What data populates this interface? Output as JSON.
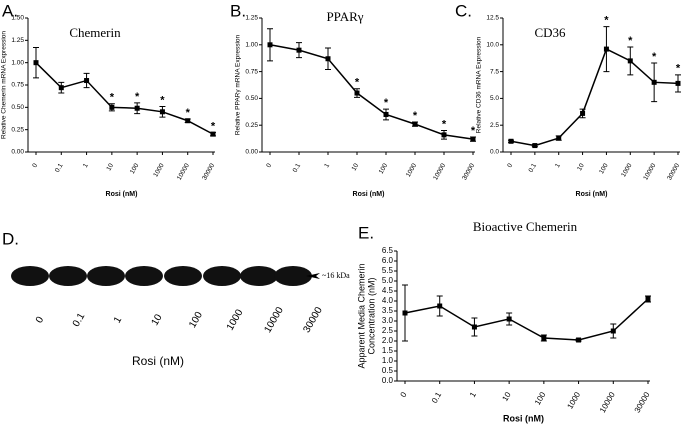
{
  "chart_data": [
    {
      "type": "line",
      "panel_label": "A.",
      "title": "Chemerin",
      "xlabel": "Rosi (nM)",
      "ylabel": [
        "Relative Chemerin mRNA Expression"
      ],
      "categories": [
        "0",
        "0.1",
        "1",
        "10",
        "100",
        "1000",
        "10000",
        "30000"
      ],
      "series": [
        {
          "color": "#000000",
          "values": [
            1.0,
            0.72,
            0.8,
            0.5,
            0.49,
            0.45,
            0.35,
            0.2
          ],
          "errors": [
            0.17,
            0.06,
            0.08,
            0.04,
            0.06,
            0.06,
            0.02,
            0.02
          ],
          "markers": [
            null,
            null,
            null,
            "*",
            "*",
            "*",
            "*",
            "*"
          ]
        }
      ],
      "ylim": [
        0,
        1.5
      ],
      "yticks": [
        {
          "value": 0,
          "label": "0.00"
        },
        {
          "value": 0.25,
          "label": "0.25"
        },
        {
          "value": 0.5,
          "label": "0.50"
        },
        {
          "value": 0.75,
          "label": "0.75"
        },
        {
          "value": 1,
          "label": "1.00"
        },
        {
          "value": 1.25,
          "label": "1.25"
        },
        {
          "value": 1.5,
          "label": "1.50"
        }
      ]
    },
    {
      "type": "line",
      "panel_label": "B.",
      "title": "PPARγ",
      "xlabel": "Rosi (nM)",
      "ylabel": [
        "Relative PPARγ mRNA Expression"
      ],
      "categories": [
        "0",
        "0.1",
        "1",
        "10",
        "100",
        "1000",
        "10000",
        "30000"
      ],
      "series": [
        {
          "color": "#000000",
          "values": [
            1.0,
            0.95,
            0.87,
            0.55,
            0.35,
            0.26,
            0.16,
            0.12
          ],
          "errors": [
            0.15,
            0.07,
            0.1,
            0.04,
            0.05,
            0.02,
            0.04,
            0.02
          ],
          "markers": [
            null,
            null,
            null,
            "*",
            "*",
            "*",
            "*",
            "*"
          ]
        }
      ],
      "ylim": [
        0,
        1.25
      ],
      "yticks": [
        {
          "value": 0,
          "label": "0.00"
        },
        {
          "value": 0.25,
          "label": "0.25"
        },
        {
          "value": 0.5,
          "label": "0.50"
        },
        {
          "value": 0.75,
          "label": "0.75"
        },
        {
          "value": 1,
          "label": "1.00"
        },
        {
          "value": 1.25,
          "label": "1.25"
        }
      ]
    },
    {
      "type": "line",
      "panel_label": "C.",
      "title": "CD36",
      "xlabel": "Rosi (nM)",
      "ylabel": [
        "Relative CD36 mRNA Expression"
      ],
      "categories": [
        "0",
        "0.1",
        "1",
        "10",
        "100",
        "1000",
        "10000",
        "30000"
      ],
      "series": [
        {
          "color": "#000000",
          "values": [
            1.0,
            0.6,
            1.3,
            3.6,
            9.6,
            8.5,
            6.5,
            6.4
          ],
          "errors": [
            0.1,
            0.1,
            0.2,
            0.4,
            2.1,
            1.3,
            1.8,
            0.8
          ],
          "markers": [
            null,
            null,
            null,
            null,
            "*",
            "*",
            "*",
            "*"
          ]
        }
      ],
      "ylim": [
        0,
        12.5
      ],
      "yticks": [
        {
          "value": 0,
          "label": "0.0"
        },
        {
          "value": 2.5,
          "label": "2.5"
        },
        {
          "value": 5,
          "label": "5.0"
        },
        {
          "value": 7.5,
          "label": "7.5"
        },
        {
          "value": 10,
          "label": "10.0"
        },
        {
          "value": 12.5,
          "label": "12.5"
        }
      ]
    },
    {
      "type": "line",
      "panel_label": "E.",
      "title": "Bioactive Chemerin",
      "xlabel": "Rosi (nM)",
      "ylabel": [
        "Apparent Media Chemerin",
        "Concentration (nM)"
      ],
      "categories": [
        "0",
        "0.1",
        "1",
        "10",
        "100",
        "1000",
        "10000",
        "30000"
      ],
      "series": [
        {
          "color": "#000000",
          "values": [
            3.4,
            3.75,
            2.7,
            3.1,
            2.15,
            2.05,
            2.5,
            4.1
          ],
          "errors": [
            1.4,
            0.5,
            0.45,
            0.3,
            0.15,
            0.05,
            0.35,
            0.15
          ]
        }
      ],
      "ylim": [
        0,
        6.5
      ],
      "yticks": [
        {
          "value": 0,
          "label": "0.0"
        },
        {
          "value": 0.5,
          "label": "0.5"
        },
        {
          "value": 1,
          "label": "1.0"
        },
        {
          "value": 1.5,
          "label": "1.5"
        },
        {
          "value": 2,
          "label": "2.0"
        },
        {
          "value": 2.5,
          "label": "2.5"
        },
        {
          "value": 3,
          "label": "3.0"
        },
        {
          "value": 3.5,
          "label": "3.5"
        },
        {
          "value": 4,
          "label": "4.0"
        },
        {
          "value": 4.5,
          "label": "4.5"
        },
        {
          "value": 5,
          "label": "5.0"
        },
        {
          "value": 5.5,
          "label": "5.5"
        },
        {
          "value": 6,
          "label": "6.0"
        },
        {
          "value": 6.5,
          "label": "6.5"
        }
      ]
    }
  ],
  "blot": {
    "panel_label": "D.",
    "marker": "~16 kDa",
    "xlabel": "Rosi (nM)",
    "lanes": [
      "0",
      "0.1",
      "1",
      "10",
      "100",
      "1000",
      "10000",
      "30000"
    ]
  }
}
